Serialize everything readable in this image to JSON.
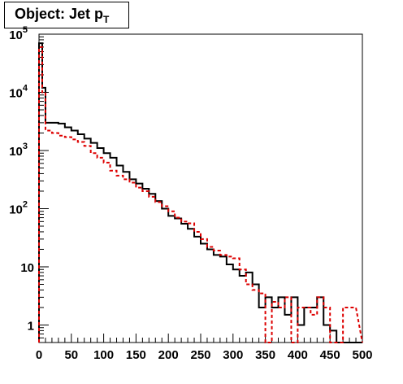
{
  "title": {
    "main": "Object: Jet p",
    "sub": "T"
  },
  "chart_data": {
    "type": "line",
    "title": "Object: Jet pT",
    "xlim": [
      0,
      500
    ],
    "ylim": [
      0.5,
      100000
    ],
    "y_scale": "log",
    "grid": false,
    "legend": "none",
    "x_ticks": [
      {
        "v": 0,
        "label": "0"
      },
      {
        "v": 50,
        "label": "50"
      },
      {
        "v": 100,
        "label": "100"
      },
      {
        "v": 150,
        "label": "150"
      },
      {
        "v": 200,
        "label": "200"
      },
      {
        "v": 250,
        "label": "250"
      },
      {
        "v": 300,
        "label": "300"
      },
      {
        "v": 350,
        "label": "350"
      },
      {
        "v": 400,
        "label": "400"
      },
      {
        "v": 450,
        "label": "450"
      },
      {
        "v": 500,
        "label": "500"
      }
    ],
    "y_ticks": [
      {
        "v": 1,
        "label": "1",
        "exp": ""
      },
      {
        "v": 10,
        "label": "10",
        "exp": ""
      },
      {
        "v": 100,
        "label": "10",
        "exp": "2"
      },
      {
        "v": 1000,
        "label": "10",
        "exp": "3"
      },
      {
        "v": 10000,
        "label": "10",
        "exp": "4"
      },
      {
        "v": 100000,
        "label": "10",
        "exp": "5"
      }
    ],
    "bin_edges": [
      0,
      5,
      10,
      20,
      30,
      40,
      50,
      60,
      70,
      80,
      90,
      100,
      110,
      120,
      130,
      140,
      150,
      160,
      170,
      180,
      190,
      200,
      210,
      220,
      230,
      240,
      250,
      260,
      270,
      280,
      290,
      300,
      310,
      320,
      330,
      340,
      350,
      360,
      370,
      380,
      390,
      400,
      410,
      420,
      430,
      440,
      450,
      460,
      470,
      480,
      490,
      500
    ],
    "series": [
      {
        "color": "#000000",
        "dash": "solid",
        "values": [
          70000,
          12000,
          3000,
          3000,
          2900,
          2500,
          2200,
          1900,
          1600,
          1350,
          1100,
          900,
          750,
          550,
          430,
          320,
          270,
          220,
          180,
          135,
          100,
          75,
          68,
          55,
          45,
          33,
          25,
          20,
          16,
          15,
          11,
          9,
          7,
          8,
          5,
          2,
          3,
          2,
          3,
          1.5,
          3,
          1,
          2,
          2,
          3,
          1,
          0.8,
          0.5,
          0.5,
          0.5
        ]
      },
      {
        "color": "#dd0000",
        "dash": "dashed",
        "values": [
          60000,
          10000,
          2200,
          2000,
          1800,
          1700,
          1550,
          1400,
          1200,
          900,
          750,
          620,
          450,
          370,
          320,
          280,
          230,
          200,
          160,
          130,
          110,
          90,
          70,
          60,
          56,
          40,
          30,
          22,
          19,
          16,
          15,
          14,
          9,
          5,
          4,
          3.5,
          0.5,
          2.5,
          2,
          3,
          0.5,
          2,
          2,
          1.5,
          3,
          2,
          0.5,
          0.5,
          2,
          2
        ]
      }
    ]
  }
}
